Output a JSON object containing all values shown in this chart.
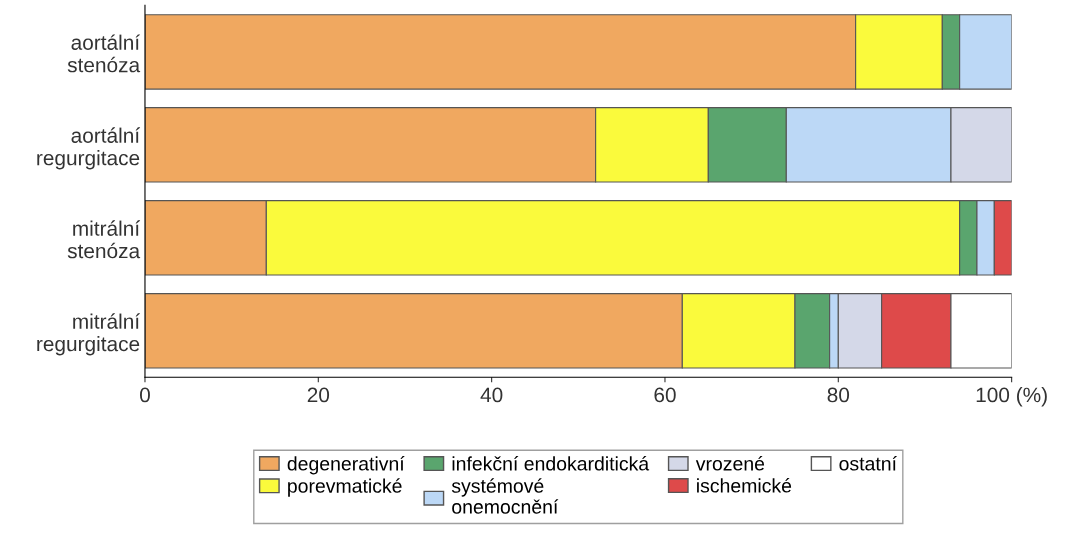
{
  "chart_data": {
    "type": "bar",
    "orientation": "horizontal",
    "stacked": true,
    "categories": [
      "aortální\nstenóza",
      "aortální\nregurgitace",
      "mitrální\nstenóza",
      "mitrální\nregurgitace"
    ],
    "series": [
      {
        "name": "degenerativní",
        "color": "#f0a860",
        "values": [
          82,
          52,
          14,
          62
        ]
      },
      {
        "name": "porevmatické",
        "color": "#fafa3c",
        "values": [
          10,
          13,
          80,
          13
        ]
      },
      {
        "name": "infekční endokarditická",
        "color": "#5aa56e",
        "values": [
          2,
          9,
          2,
          4
        ]
      },
      {
        "name": "systémové\nonemocnění",
        "color": "#bcd8f6",
        "values": [
          6,
          19,
          2,
          1
        ]
      },
      {
        "name": "vrozené",
        "color": "#d4d8e8",
        "values": [
          null,
          7,
          null,
          5
        ]
      },
      {
        "name": "ischemické",
        "color": "#de4a4a",
        "values": [
          null,
          null,
          2,
          8
        ]
      },
      {
        "name": "ostatní",
        "color": "#ffffff",
        "values": [
          null,
          null,
          null,
          7
        ]
      }
    ],
    "xlim": [
      0,
      100
    ],
    "xticks": [
      0,
      20,
      40,
      60,
      80,
      {
        "value": 100,
        "label": "100 (%)"
      }
    ],
    "legend": "bottom",
    "grid": false
  }
}
